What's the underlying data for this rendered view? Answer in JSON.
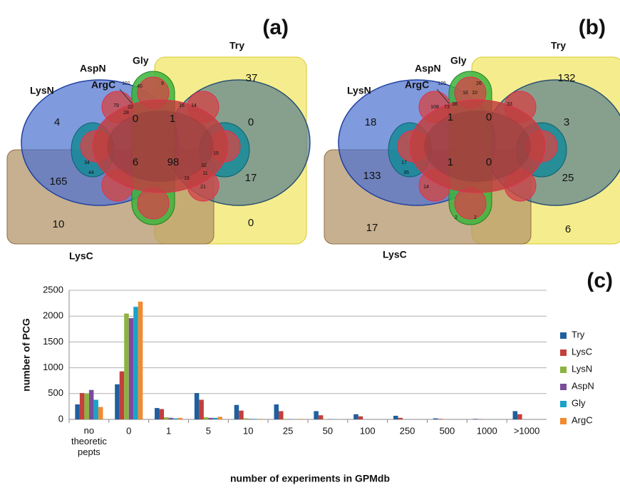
{
  "chart_data": [
    {
      "type": "venn",
      "title": "(a)",
      "sets": [
        "LysN",
        "AspN",
        "ArgC",
        "Gly",
        "Try",
        "LysC"
      ],
      "regions": [
        4,
        37,
        0,
        1,
        0,
        6,
        98,
        165,
        17,
        10,
        0,
        101,
        9,
        40,
        79,
        22,
        28,
        16,
        14,
        32,
        11,
        21,
        34,
        44,
        15,
        16
      ]
    },
    {
      "type": "venn",
      "title": "(b)",
      "sets": [
        "LysN",
        "AspN",
        "ArgC",
        "Gly",
        "Try",
        "LysC"
      ],
      "regions": [
        18,
        132,
        1,
        0,
        3,
        1,
        0,
        133,
        25,
        17,
        6,
        125,
        26,
        16,
        10,
        108,
        73,
        38,
        33,
        17,
        35,
        14,
        2,
        2
      ]
    },
    {
      "type": "bar",
      "title": "(c)",
      "x_label": "number of experiments in GPMdb",
      "y_label": "number of PCG",
      "categories": [
        "no theoretic pepts",
        "0",
        "1",
        "5",
        "10",
        "25",
        "50",
        "100",
        "250",
        "500",
        "1000",
        ">1000"
      ],
      "series": [
        {
          "name": "Try",
          "color": "#1f5f9e",
          "values": [
            290,
            680,
            220,
            510,
            280,
            290,
            160,
            100,
            70,
            20,
            10,
            160
          ]
        },
        {
          "name": "LysC",
          "color": "#c3403c",
          "values": [
            510,
            930,
            200,
            380,
            170,
            160,
            80,
            60,
            30,
            10,
            5,
            100
          ]
        },
        {
          "name": "LysN",
          "color": "#8cb33f",
          "values": [
            500,
            2050,
            40,
            40,
            20,
            10,
            5,
            0,
            0,
            0,
            0,
            0
          ]
        },
        {
          "name": "AspN",
          "color": "#7b4c9c",
          "values": [
            570,
            1960,
            30,
            30,
            10,
            5,
            5,
            0,
            0,
            0,
            0,
            0
          ]
        },
        {
          "name": "Gly",
          "color": "#1aa3c8",
          "values": [
            380,
            2180,
            20,
            30,
            10,
            5,
            5,
            0,
            0,
            0,
            0,
            0
          ]
        },
        {
          "name": "ArgC",
          "color": "#f28a30",
          "values": [
            240,
            2280,
            30,
            50,
            10,
            10,
            5,
            0,
            0,
            0,
            0,
            0
          ]
        }
      ],
      "ylim": [
        0,
        2500
      ],
      "yticks": [
        0,
        500,
        1000,
        1500,
        2000,
        2500
      ],
      "grid": true,
      "legend": "right"
    }
  ]
}
